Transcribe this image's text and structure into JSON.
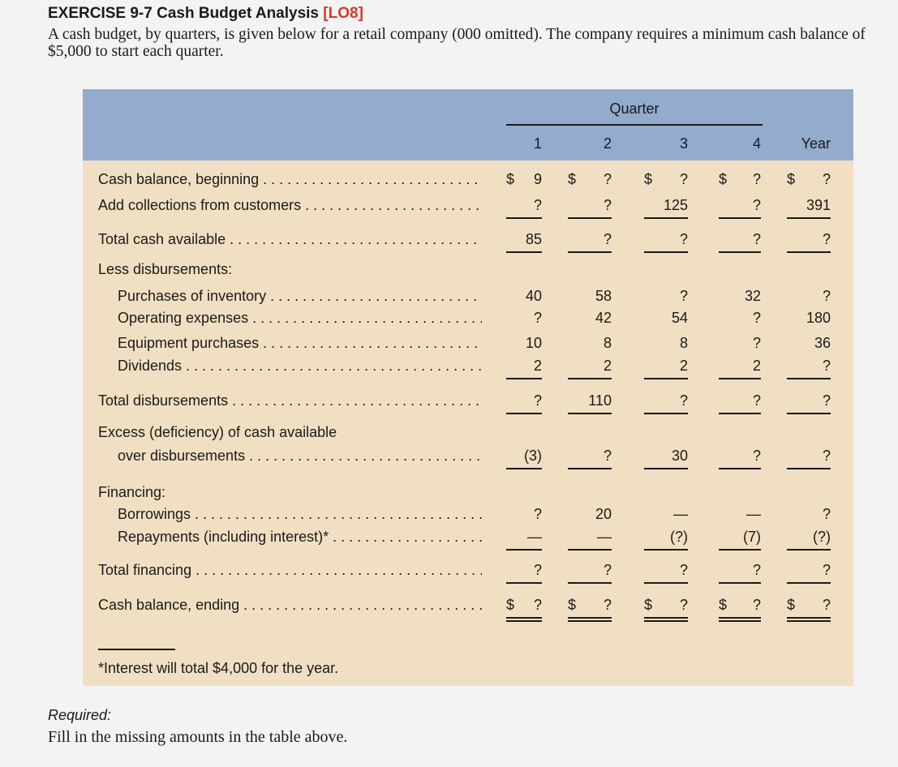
{
  "header": {
    "title": "EXERCISE 9-7 Cash Budget Analysis",
    "lo": "[LO8]",
    "intro": "A cash budget, by quarters, is given below for a retail company (000 omitted). The company requires a minimum cash balance of $5,000 to start each quarter."
  },
  "table": {
    "quarter_label": "Quarter",
    "columns": [
      "1",
      "2",
      "3",
      "4",
      "Year"
    ],
    "rows": [
      {
        "label": "Cash balance, beginning",
        "values": [
          "9",
          "?",
          "?",
          "?",
          "?"
        ],
        "dollar": true
      },
      {
        "label": "Add collections from customers",
        "values": [
          "?",
          "?",
          "125",
          "?",
          "391"
        ]
      },
      {
        "label": "Total cash available",
        "values": [
          "85",
          "?",
          "?",
          "?",
          "?"
        ]
      },
      {
        "label": "Less disbursements:",
        "values": []
      },
      {
        "label": "Purchases of inventory",
        "values": [
          "40",
          "58",
          "?",
          "32",
          "?"
        ]
      },
      {
        "label": "Operating expenses",
        "values": [
          "?",
          "42",
          "54",
          "?",
          "180"
        ]
      },
      {
        "label": "Equipment purchases",
        "values": [
          "10",
          "8",
          "8",
          "?",
          "36"
        ]
      },
      {
        "label": "Dividends",
        "values": [
          "2",
          "2",
          "2",
          "2",
          "?"
        ]
      },
      {
        "label": "Total disbursements",
        "values": [
          "?",
          "110",
          "?",
          "?",
          "?"
        ]
      },
      {
        "label": "Excess (deficiency) of cash available",
        "values": []
      },
      {
        "label": "over disbursements",
        "values": [
          "(3)",
          "?",
          "30",
          "?",
          "?"
        ]
      },
      {
        "label": "Financing:",
        "values": []
      },
      {
        "label": "Borrowings",
        "values": [
          "?",
          "20",
          "—",
          "—",
          "?"
        ]
      },
      {
        "label": "Repayments (including interest)*",
        "values": [
          "—",
          "—",
          "(?)",
          "(7)",
          "(?)"
        ]
      },
      {
        "label": "Total financing",
        "values": [
          "?",
          "?",
          "?",
          "?",
          "?"
        ]
      },
      {
        "label": "Cash balance, ending",
        "values": [
          "?",
          "?",
          "?",
          "?",
          "?"
        ],
        "dollar": true
      }
    ],
    "dollar_sign": "$",
    "footnote": "*Interest will total $4,000 for the year."
  },
  "required": {
    "label": "Required:",
    "text": "Fill in the missing amounts in the table above."
  }
}
